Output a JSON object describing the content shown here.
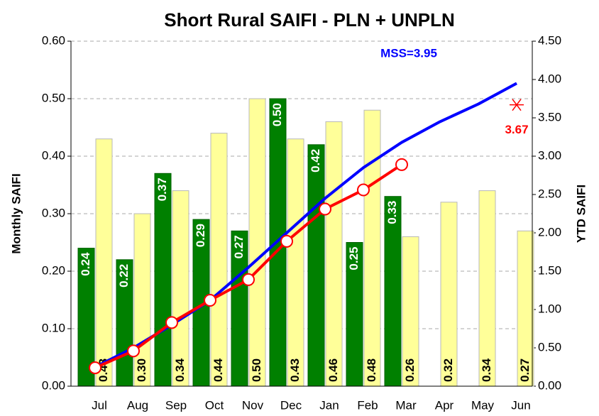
{
  "chart_data": {
    "type": "bar",
    "title": "Short Rural SAIFI - PLN + UNPLN",
    "y_label": "Monthly SAIFI",
    "y2_label": "YTD SAIFI",
    "annotation": "MSS=3.95",
    "categories": [
      "Jul",
      "Aug",
      "Sep",
      "Oct",
      "Nov",
      "Dec",
      "Jan",
      "Feb",
      "Mar",
      "Apr",
      "May",
      "Jun"
    ],
    "ylim": [
      0,
      0.6
    ],
    "yticks": [
      {
        "value": 0,
        "label": "0.00"
      },
      {
        "value": 0.1,
        "label": "0.10"
      },
      {
        "value": 0.2,
        "label": "0.20"
      },
      {
        "value": 0.3,
        "label": "0.30"
      },
      {
        "value": 0.4,
        "label": "0.40"
      },
      {
        "value": 0.5,
        "label": "0.50"
      },
      {
        "value": 0.6,
        "label": "0.60"
      }
    ],
    "y2lim": [
      0,
      4.5
    ],
    "y2ticks": [
      {
        "value": 0,
        "label": "0.00"
      },
      {
        "value": 0.5,
        "label": "0.50"
      },
      {
        "value": 1,
        "label": "1.00"
      },
      {
        "value": 1.5,
        "label": "1.50"
      },
      {
        "value": 2,
        "label": "2.00"
      },
      {
        "value": 2.5,
        "label": "2.50"
      },
      {
        "value": 3,
        "label": "3.00"
      },
      {
        "value": 3.5,
        "label": "3.50"
      },
      {
        "value": 4,
        "label": "4.00"
      },
      {
        "value": 4.5,
        "label": "4.50"
      }
    ],
    "grid": true,
    "series": [
      {
        "kind": "bar",
        "color": "#008000",
        "label_color": "#ffffff",
        "label_position": "top",
        "values": [
          0.24,
          0.22,
          0.37,
          0.29,
          0.27,
          0.5,
          0.42,
          0.25,
          0.33,
          null,
          null,
          null
        ],
        "value_labels": [
          "0.24",
          "0.22",
          "0.37",
          "0.29",
          "0.27",
          "0.50",
          "0.42",
          "0.25",
          "0.33",
          null,
          null,
          null
        ]
      },
      {
        "kind": "bar",
        "color": "#ffff99",
        "label_color": "#000000",
        "label_position": "bottom",
        "values": [
          0.43,
          0.3,
          0.34,
          0.44,
          0.5,
          0.43,
          0.46,
          0.48,
          0.26,
          0.32,
          0.34,
          0.27
        ],
        "value_labels": [
          "0.43",
          "0.30",
          "0.34",
          "0.44",
          "0.50",
          "0.43",
          "0.46",
          "0.48",
          "0.26",
          "0.32",
          "0.34",
          "0.27"
        ]
      },
      {
        "kind": "line",
        "axis": "y2",
        "color": "#0000ff",
        "values": [
          0.25,
          0.5,
          0.8,
          1.12,
          1.55,
          2.0,
          2.45,
          2.85,
          3.18,
          3.45,
          3.68,
          3.95
        ]
      },
      {
        "kind": "line",
        "axis": "y2",
        "color": "#ff0000",
        "marker": "circle",
        "values": [
          0.24,
          0.46,
          0.83,
          1.12,
          1.39,
          1.89,
          2.31,
          2.56,
          2.89,
          null,
          null,
          null
        ]
      },
      {
        "kind": "marker",
        "axis": "y2",
        "color": "#ff0000",
        "marker": "asterisk",
        "show_value": true,
        "values": [
          null,
          null,
          null,
          null,
          null,
          null,
          null,
          null,
          null,
          null,
          null,
          3.67
        ]
      }
    ]
  }
}
